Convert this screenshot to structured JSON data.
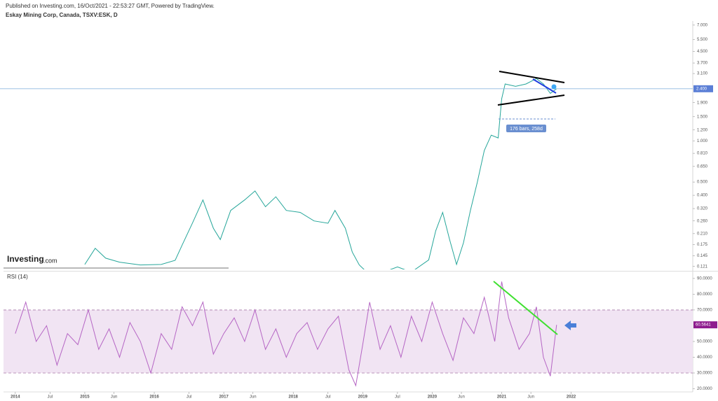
{
  "published": "Published on Investing.com, 16/Oct/2021 - 22:53:27 GMT, Powered by TradingView.",
  "logo": {
    "brand": "Investing",
    "suffix": ".com"
  },
  "annotation": "176 bars, 258d",
  "chart_data": [
    {
      "type": "line",
      "title": "Eskay Mining Corp, Canada, TSXV:ESK, D",
      "log": true,
      "xlim": [
        2013.83,
        2023.75
      ],
      "ylim": [
        0.115,
        7.5
      ],
      "yticks": [
        {
          "value": 7,
          "label": "7.000"
        },
        {
          "value": 5.5,
          "label": "5.500"
        },
        {
          "value": 4.5,
          "label": "4.500"
        },
        {
          "value": 3.7,
          "label": "3.700"
        },
        {
          "value": 3.1,
          "label": "3.100"
        },
        {
          "value": 1.9,
          "label": "1.900"
        },
        {
          "value": 1.5,
          "label": "1.500"
        },
        {
          "value": 1.2,
          "label": "1.200"
        },
        {
          "value": 1,
          "label": "1.000"
        },
        {
          "value": 0.81,
          "label": "0.810"
        },
        {
          "value": 0.65,
          "label": "0.650"
        },
        {
          "value": 0.5,
          "label": "0.500"
        },
        {
          "value": 0.4,
          "label": "0.400"
        },
        {
          "value": 0.32,
          "label": "0.320"
        },
        {
          "value": 0.26,
          "label": "0.260"
        },
        {
          "value": 0.21,
          "label": "0.210"
        },
        {
          "value": 0.175,
          "label": "0.175"
        },
        {
          "value": 0.145,
          "label": "0.145"
        },
        {
          "value": 0.121,
          "label": "0.121"
        }
      ],
      "price_line": {
        "value": 2.4,
        "label": "2.400",
        "color": "#5b7fd6"
      },
      "x": [
        2015.0,
        2015.15,
        2015.3,
        2015.5,
        2015.8,
        2016.1,
        2016.3,
        2016.4,
        2016.55,
        2016.7,
        2016.85,
        2016.95,
        2017.1,
        2017.3,
        2017.45,
        2017.6,
        2017.75,
        2017.9,
        2018.1,
        2018.3,
        2018.5,
        2018.6,
        2018.75,
        2018.85,
        2018.95,
        2019.1,
        2019.3,
        2019.5,
        2019.7,
        2019.95,
        2020.05,
        2020.15,
        2020.25,
        2020.35,
        2020.45,
        2020.55,
        2020.65,
        2020.75,
        2020.85,
        2020.95,
        2021.0,
        2021.05,
        2021.2,
        2021.35,
        2021.5,
        2021.6,
        2021.7,
        2021.79
      ],
      "series": [
        {
          "name": "ESK",
          "color": "#26a69a",
          "values": [
            0.125,
            0.164,
            0.139,
            0.13,
            0.124,
            0.125,
            0.134,
            0.173,
            0.251,
            0.37,
            0.23,
            0.19,
            0.31,
            0.37,
            0.43,
            0.33,
            0.39,
            0.31,
            0.3,
            0.26,
            0.25,
            0.31,
            0.23,
            0.154,
            0.124,
            0.105,
            0.11,
            0.12,
            0.11,
            0.135,
            0.22,
            0.3,
            0.19,
            0.125,
            0.18,
            0.31,
            0.5,
            0.85,
            1.1,
            1.05,
            2.03,
            2.6,
            2.5,
            2.6,
            2.85,
            2.6,
            2.22,
            2.4
          ]
        }
      ]
    },
    {
      "type": "line",
      "title": "RSI (14)",
      "xlim": [
        2013.83,
        2023.75
      ],
      "ylim": [
        18,
        93.5
      ],
      "yticks": [
        {
          "value": 90,
          "label": "90.0000"
        },
        {
          "value": 80,
          "label": "80.0000"
        },
        {
          "value": 70,
          "label": "70.0000"
        },
        {
          "value": 50,
          "label": "50.0000"
        },
        {
          "value": 40,
          "label": "40.0000"
        },
        {
          "value": 30,
          "label": "30.0000"
        },
        {
          "value": 20,
          "label": "20.0000"
        }
      ],
      "band": {
        "range": [
          30,
          70
        ],
        "color": "#f1e4f3"
      },
      "xticks": [
        2014,
        {
          "value": 2014.5,
          "label": "Jul"
        },
        2015,
        {
          "value": 2015.42,
          "label": "Jun"
        },
        2016,
        {
          "value": 2016.5,
          "label": "Jul"
        },
        2017,
        {
          "value": 2017.42,
          "label": "Jun"
        },
        2018,
        {
          "value": 2018.5,
          "label": "Jul"
        },
        2019,
        {
          "value": 2019.5,
          "label": "Jul"
        },
        2020,
        {
          "value": 2020.42,
          "label": "Jun"
        },
        2021,
        {
          "value": 2021.42,
          "label": "Jun"
        },
        2022
      ],
      "x": [
        2014.0,
        2014.15,
        2014.3,
        2014.45,
        2014.6,
        2014.75,
        2014.9,
        2015.05,
        2015.2,
        2015.35,
        2015.5,
        2015.65,
        2015.8,
        2015.95,
        2016.1,
        2016.25,
        2016.4,
        2016.55,
        2016.7,
        2016.85,
        2017.0,
        2017.15,
        2017.3,
        2017.45,
        2017.6,
        2017.75,
        2017.9,
        2018.05,
        2018.2,
        2018.35,
        2018.5,
        2018.65,
        2018.8,
        2018.9,
        2019.0,
        2019.1,
        2019.25,
        2019.4,
        2019.55,
        2019.7,
        2019.85,
        2020.0,
        2020.15,
        2020.3,
        2020.45,
        2020.6,
        2020.75,
        2020.9,
        2021.0,
        2021.1,
        2021.25,
        2021.4,
        2021.5,
        2021.6,
        2021.7,
        2021.79
      ],
      "series": [
        {
          "name": "RSI",
          "color": "#b565c4",
          "values": [
            55,
            75,
            50,
            60,
            35,
            55,
            48,
            70,
            45,
            58,
            40,
            62,
            50,
            30,
            55,
            45,
            72,
            60,
            75,
            42,
            55,
            65,
            50,
            70,
            45,
            58,
            40,
            55,
            62,
            45,
            58,
            66,
            32,
            22,
            48,
            75,
            45,
            60,
            40,
            66,
            50,
            75,
            55,
            38,
            65,
            55,
            78,
            50,
            88,
            65,
            45,
            55,
            72,
            40,
            28,
            60.5641
          ]
        }
      ]
    }
  ]
}
